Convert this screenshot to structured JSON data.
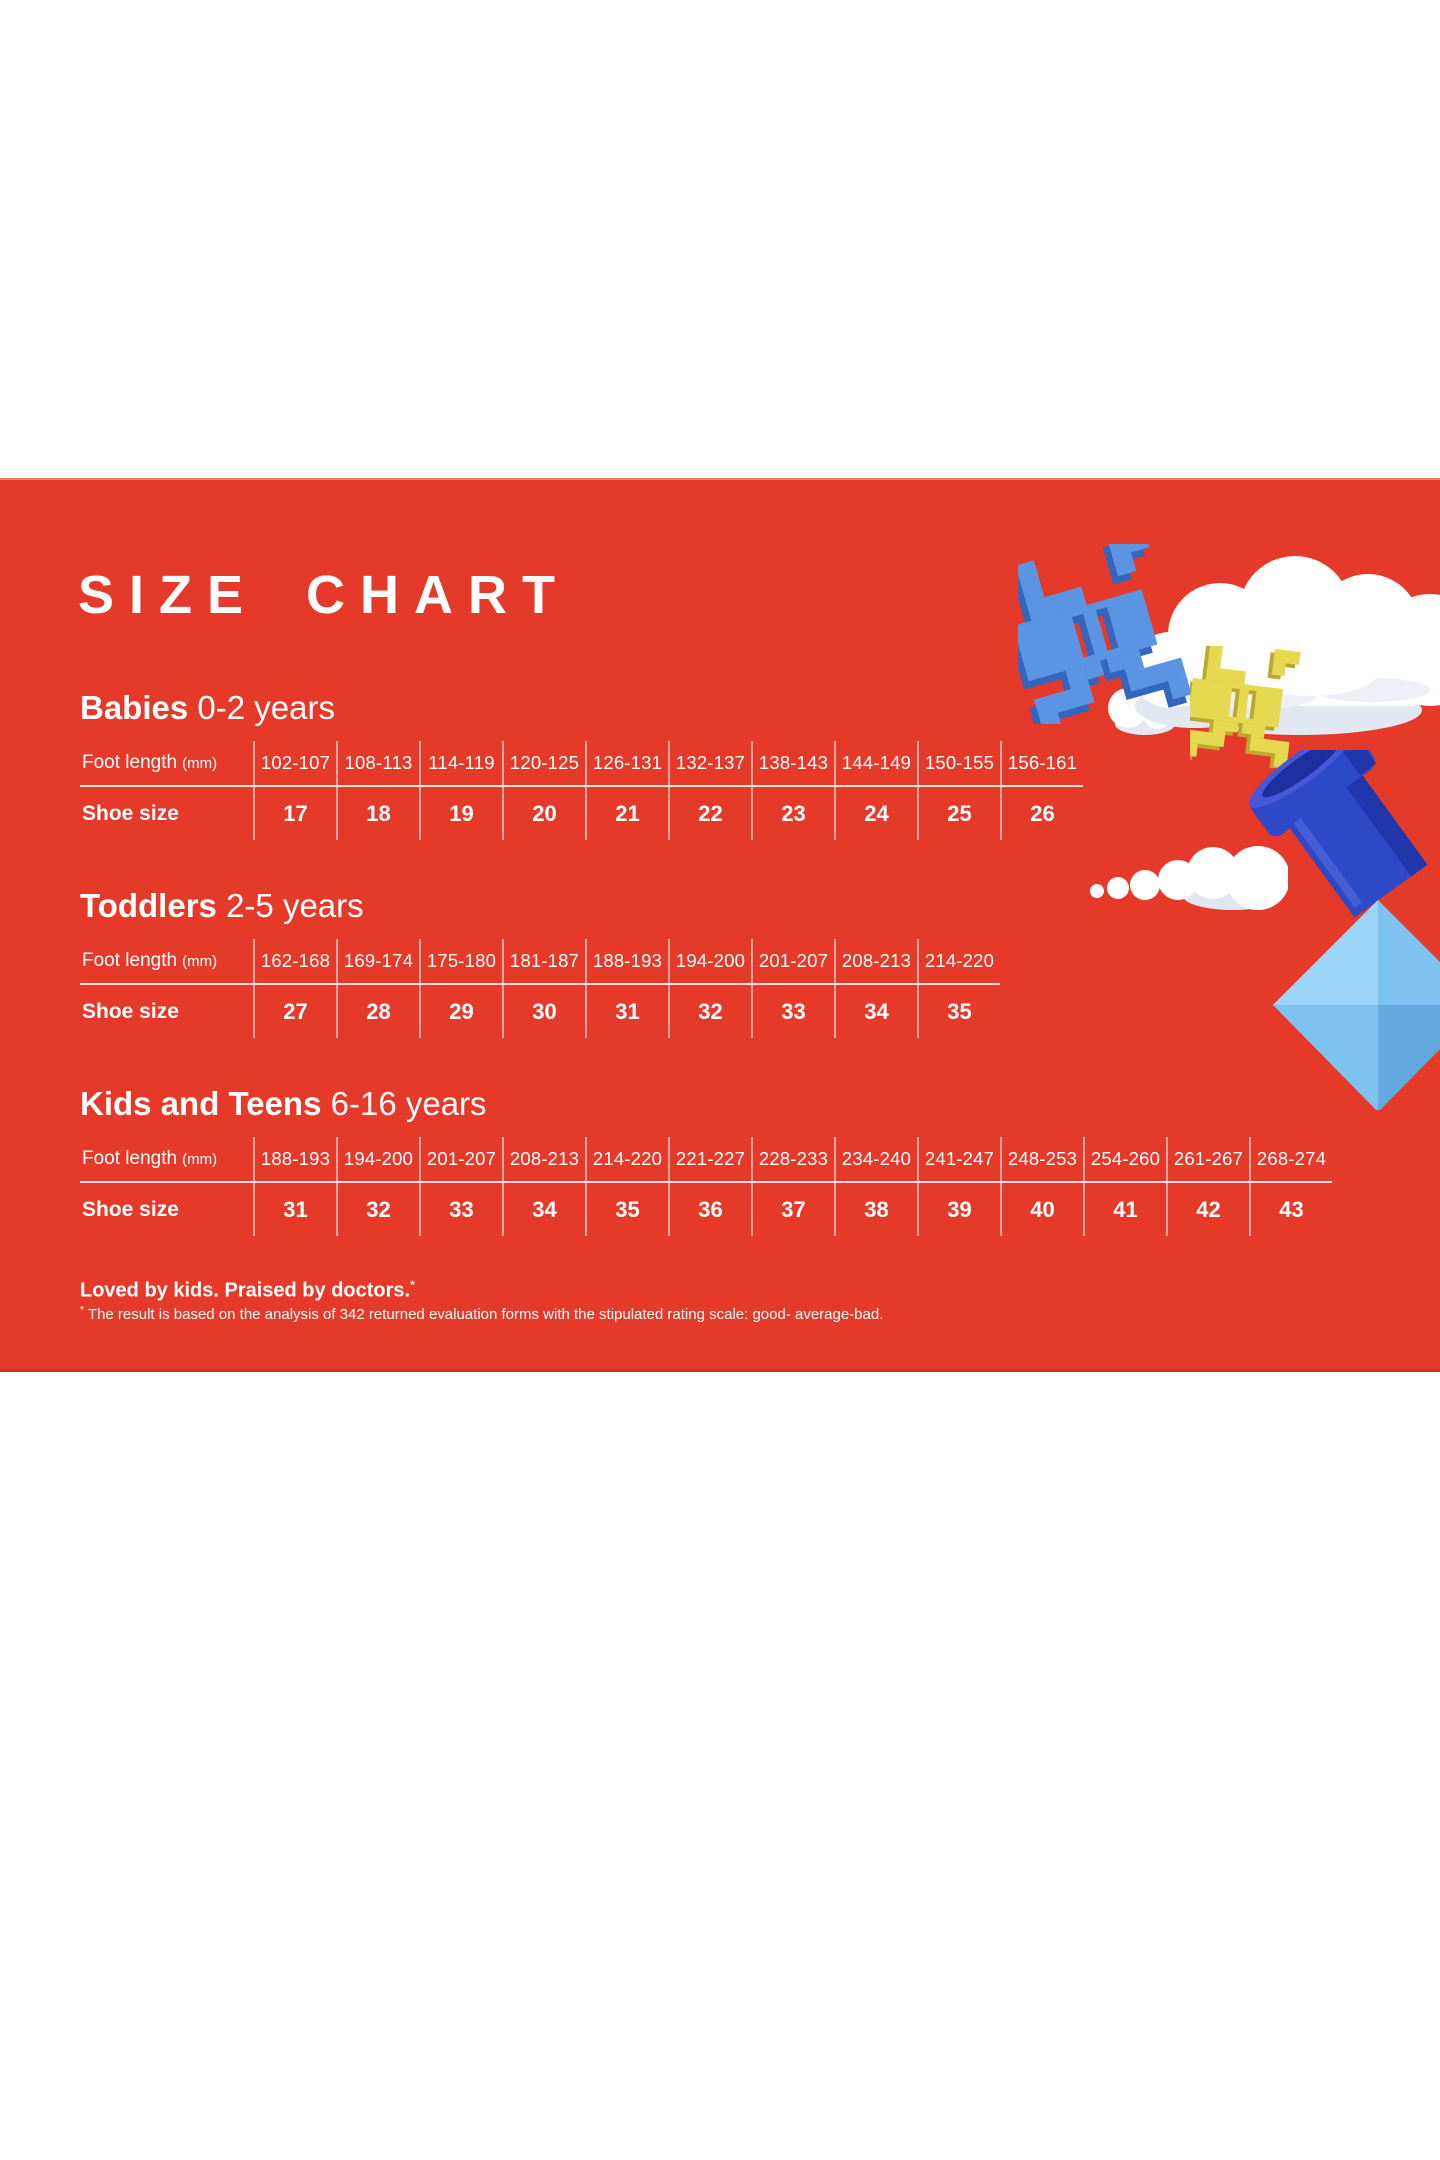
{
  "banner": {
    "title": "SIZE CHART"
  },
  "sections": [
    {
      "name": "Babies",
      "age": "0-2 years",
      "foot_label": "Foot length",
      "foot_unit": "(mm)",
      "shoe_label": "Shoe size",
      "foot_lengths": [
        "102-107",
        "108-113",
        "114-119",
        "120-125",
        "126-131",
        "132-137",
        "138-143",
        "144-149",
        "150-155",
        "156-161"
      ],
      "shoe_sizes": [
        "17",
        "18",
        "19",
        "20",
        "21",
        "22",
        "23",
        "24",
        "25",
        "26"
      ]
    },
    {
      "name": "Toddlers",
      "age": "2-5 years",
      "foot_label": "Foot length",
      "foot_unit": "(mm)",
      "shoe_label": "Shoe size",
      "foot_lengths": [
        "162-168",
        "169-174",
        "175-180",
        "181-187",
        "188-193",
        "194-200",
        "201-207",
        "208-213",
        "214-220"
      ],
      "shoe_sizes": [
        "27",
        "28",
        "29",
        "30",
        "31",
        "32",
        "33",
        "34",
        "35"
      ]
    },
    {
      "name": "Kids and Teens",
      "age": "6-16 years",
      "foot_label": "Foot length",
      "foot_unit": "(mm)",
      "shoe_label": "Shoe size",
      "foot_lengths": [
        "188-193",
        "194-200",
        "201-207",
        "208-213",
        "214-220",
        "221-227",
        "228-233",
        "234-240",
        "241-247",
        "248-253",
        "254-260",
        "261-267",
        "268-274"
      ],
      "shoe_sizes": [
        "31",
        "32",
        "33",
        "34",
        "35",
        "36",
        "37",
        "38",
        "39",
        "40",
        "41",
        "42",
        "43"
      ]
    }
  ],
  "footer": {
    "tagline": "Loved by kids. Praised by doctors.",
    "asterisk": "*",
    "note": "The result is based on the analysis of 342 returned evaluation forms with the stipulated rating scale: good- average-bad."
  },
  "decorations": [
    "cloud-large",
    "toy-invader-blue",
    "toy-invader-yellow",
    "cloud-trail",
    "toy-brick-rocket"
  ],
  "colors": {
    "banner_red": "#E5392A",
    "text_white": "#FFFFFF",
    "invader_blue": "#5B94E3",
    "invader_blue_dark": "#3366BE",
    "invader_yellow": "#E5D94F",
    "invader_yellow_dark": "#BBA92F",
    "brick_light_blue": "#7EC3EF",
    "brick_dark_blue": "#2E49C8",
    "cloud_white": "#FFFFFF"
  }
}
